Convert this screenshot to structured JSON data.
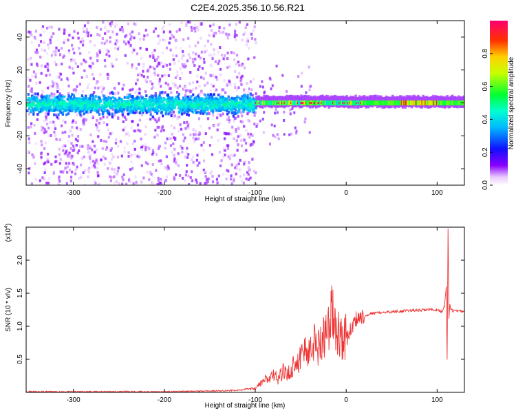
{
  "title": "C2E4.2025.356.10.56.R21",
  "chart_data": [
    {
      "type": "heatmap",
      "name": "spectrogram",
      "xlabel": "Height of straight line (km)",
      "ylabel": "Frequency (Hz)",
      "xlim": [
        -352,
        130
      ],
      "ylim": [
        -50,
        50
      ],
      "x_ticks": [
        -300,
        -200,
        -100,
        0,
        100
      ],
      "y_ticks": [
        -40,
        -20,
        0,
        20,
        40
      ],
      "grid": false,
      "colorbar": {
        "label": "Normalized spectral amplitude",
        "range": [
          0,
          1
        ],
        "ticks": [
          0.0,
          0.2,
          0.4,
          0.6,
          0.8
        ],
        "colormap": [
          "#ffffff",
          "#7700ff",
          "#0000ff",
          "#00ffff",
          "#00ff00",
          "#ffff00",
          "#ff0000",
          "#ff0080"
        ]
      },
      "features": [
        {
          "x_range": [
            -352,
            -100
          ],
          "freq_band": [
            -50,
            50
          ],
          "amplitude": "low, broadband noise"
        },
        {
          "x_range": [
            -352,
            -100
          ],
          "freq_band": [
            -10,
            8
          ],
          "amplitude": "0.2-0.4 concentrated near 0 Hz"
        },
        {
          "x_range": [
            -100,
            130
          ],
          "freq_band": [
            -3,
            3
          ],
          "amplitude": "0.4-1.0 narrow band at 0 Hz"
        }
      ]
    },
    {
      "type": "line",
      "name": "snr",
      "xlabel": "Height of straight line (km)",
      "ylabel": "SNR (10 * v/v)",
      "y_scale_label": "(x10",
      "y_scale_exp": "4",
      "y_multiplier": 10000,
      "xlim": [
        -352,
        130
      ],
      "ylim": [
        0,
        2.5
      ],
      "x_ticks": [
        -300,
        -200,
        -100,
        0,
        100
      ],
      "y_ticks": [
        0.5,
        1.0,
        1.5,
        2.0
      ],
      "grid": false,
      "series": [
        {
          "color": "#ee3333",
          "x": [
            -352,
            -200,
            -150,
            -120,
            -110,
            -100,
            -95,
            -90,
            -85,
            -80,
            -75,
            -70,
            -65,
            -60,
            -55,
            -50,
            -45,
            -40,
            -35,
            -30,
            -25,
            -20,
            -18,
            -15,
            -12,
            -10,
            -8,
            -5,
            0,
            5,
            10,
            15,
            20,
            25,
            30,
            40,
            50,
            60,
            70,
            80,
            90,
            100,
            105,
            108,
            110,
            111,
            112,
            113,
            114,
            115,
            118,
            120,
            125,
            130
          ],
          "y": [
            0.0,
            0.0,
            0.01,
            0.02,
            0.04,
            0.05,
            0.12,
            0.18,
            0.2,
            0.24,
            0.2,
            0.3,
            0.25,
            0.35,
            0.45,
            0.5,
            0.65,
            0.55,
            0.75,
            0.65,
            0.85,
            0.9,
            1.0,
            1.2,
            0.85,
            0.95,
            0.85,
            0.8,
            0.8,
            0.95,
            1.1,
            1.15,
            1.15,
            1.18,
            1.2,
            1.21,
            1.22,
            1.23,
            1.24,
            1.24,
            1.25,
            1.25,
            1.22,
            1.3,
            1.6,
            0.5,
            2.5,
            1.1,
            1.35,
            1.25,
            1.23,
            1.24,
            1.23,
            1.22
          ]
        }
      ]
    }
  ]
}
